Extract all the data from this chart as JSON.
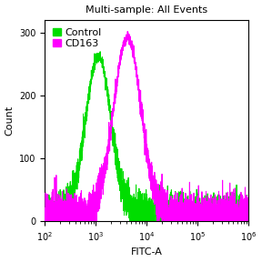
{
  "title": "Multi-sample: All Events",
  "xlabel": "FITC-A",
  "ylabel": "Count",
  "xlim_log": [
    2,
    6
  ],
  "ylim": [
    0,
    320
  ],
  "yticks": [
    0,
    100,
    200,
    300
  ],
  "control_color": "#00dd00",
  "cd163_color": "#ff00ff",
  "control_peak_log": 3.05,
  "cd163_peak_log": 3.62,
  "control_peak_height": 252,
  "cd163_peak_height": 282,
  "control_sigma_log": 0.25,
  "cd163_sigma_log": 0.27,
  "baseline": 10,
  "legend_labels": [
    "Control",
    "CD163"
  ],
  "title_fontsize": 8,
  "axis_fontsize": 8,
  "tick_fontsize": 7,
  "legend_fontsize": 8,
  "background_color": "#ffffff",
  "plot_background": "#ffffff",
  "linewidth": 0.7
}
